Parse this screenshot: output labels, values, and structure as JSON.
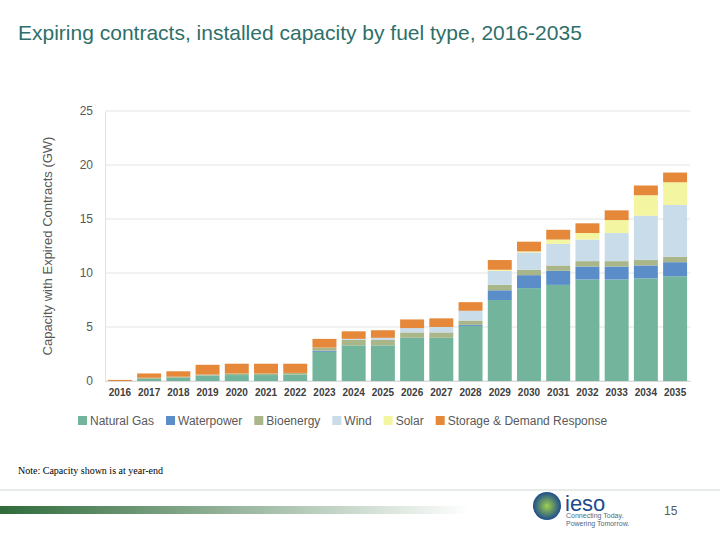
{
  "chart_data": {
    "type": "bar",
    "stacked": true,
    "grid": true,
    "title": "Expiring contracts, installed capacity by fuel type, 2016-2035",
    "ylabel": "Capacity with Expired Contracts (GW)",
    "categories": [
      "2016",
      "2017",
      "2018",
      "2019",
      "2020",
      "2021",
      "2022",
      "2023",
      "2024",
      "2025",
      "2026",
      "2027",
      "2028",
      "2029",
      "2030",
      "2031",
      "2032",
      "2033",
      "2034",
      "2035"
    ],
    "ylim": [
      0,
      25
    ],
    "yticks": [
      0,
      5,
      10,
      15,
      20,
      25
    ],
    "series": [
      {
        "name": "Natural Gas",
        "color": "#72b59c",
        "values": [
          0,
          0.2,
          0.3,
          0.5,
          0.55,
          0.55,
          0.6,
          2.7,
          3.3,
          3.3,
          4.0,
          4.0,
          5.1,
          7.5,
          8.6,
          8.9,
          9.4,
          9.4,
          9.5,
          9.7
        ]
      },
      {
        "name": "Waterpower",
        "color": "#5b8dc8",
        "values": [
          0,
          0,
          0,
          0,
          0,
          0,
          0,
          0.1,
          0,
          0,
          0,
          0,
          0.1,
          0.9,
          1.2,
          1.3,
          1.2,
          1.2,
          1.2,
          1.3
        ]
      },
      {
        "name": "Bioenergy",
        "color": "#a9b68a",
        "values": [
          0,
          0.1,
          0.1,
          0.1,
          0.15,
          0.15,
          0.15,
          0.3,
          0.5,
          0.5,
          0.5,
          0.5,
          0.4,
          0.5,
          0.5,
          0.5,
          0.5,
          0.5,
          0.5,
          0.5
        ]
      },
      {
        "name": "Wind",
        "color": "#c9dcea",
        "values": [
          0,
          0,
          0,
          0,
          0,
          0,
          0,
          0,
          0.1,
          0.2,
          0.4,
          0.5,
          0.9,
          1.3,
          1.6,
          2.0,
          2.0,
          2.6,
          4.1,
          4.8
        ]
      },
      {
        "name": "Solar",
        "color": "#f4f5a0",
        "values": [
          0,
          0,
          0,
          0,
          0,
          0,
          0,
          0,
          0,
          0,
          0,
          0,
          0,
          0.1,
          0.1,
          0.4,
          0.6,
          1.2,
          1.9,
          2.1
        ]
      },
      {
        "name": "Storage & Demand Response",
        "color": "#e5883a",
        "values": [
          0.1,
          0.4,
          0.5,
          0.9,
          0.9,
          0.9,
          0.85,
          0.8,
          0.7,
          0.7,
          0.8,
          0.8,
          0.8,
          0.9,
          0.9,
          0.9,
          0.9,
          0.9,
          0.9,
          0.9
        ]
      }
    ]
  },
  "slide": {
    "note": "Note: Capacity shown is at year-end",
    "logo": "ieso",
    "tagline": [
      "Connecting Today.",
      "Powering Tomorrow."
    ],
    "page_number": 15
  }
}
